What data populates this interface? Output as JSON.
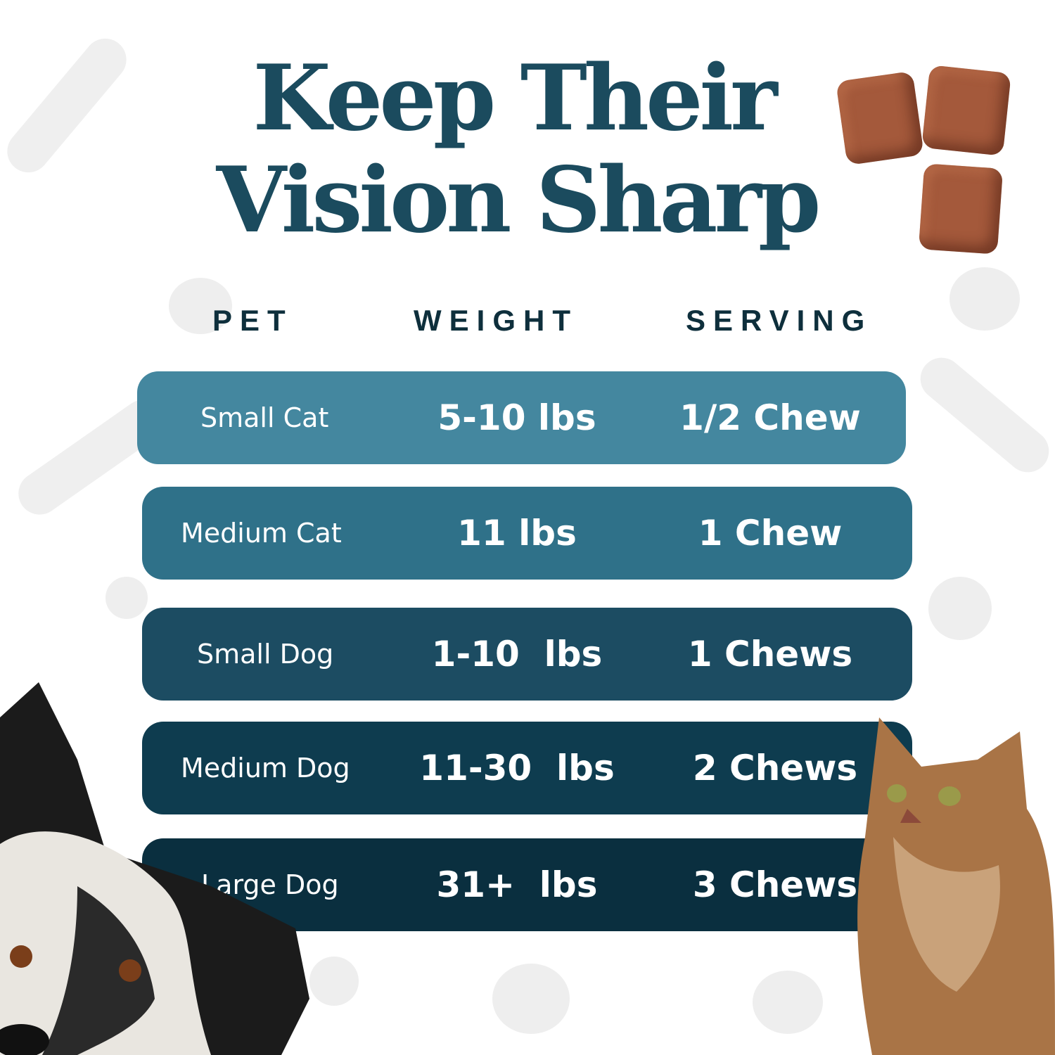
{
  "title": {
    "line1": "Keep Their",
    "line2": "Vision Sharp"
  },
  "headers": {
    "pet": "PET",
    "weight": "WEIGHT",
    "serving": "SERVING"
  },
  "rows": [
    {
      "pet": "Small Cat",
      "weight": "5-10 lbs",
      "serving": "1/2 Chew",
      "color": "#44879f"
    },
    {
      "pet": "Medium Cat",
      "weight": "11 lbs",
      "serving": "1 Chew",
      "color": "#2f7189"
    },
    {
      "pet": "Small Dog",
      "weight": "1-10  lbs",
      "serving": "1 Chews",
      "color": "#1c4c62"
    },
    {
      "pet": "Medium Dog",
      "weight": "11-30  lbs",
      "serving": "2 Chews",
      "color": "#0e3c4f"
    },
    {
      "pet": "Large Dog",
      "weight": "31+  lbs",
      "serving": "3 Chews",
      "color": "#0a2f3f"
    }
  ],
  "colors": {
    "title": "#1b4b5e",
    "header": "#0e2f3c",
    "chew": "#a4593b"
  },
  "images": [
    "chews-photo",
    "dog-photo",
    "cat-photo"
  ]
}
